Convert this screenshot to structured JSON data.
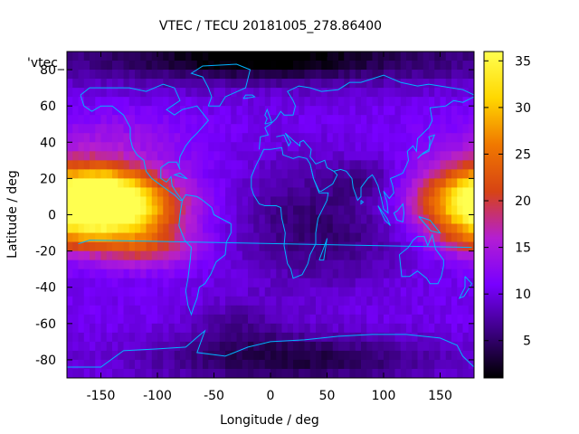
{
  "chart_data": {
    "type": "heatmap",
    "title": "VTEC / TECU 20181005_278.86400",
    "xlabel": "Longitude / deg",
    "ylabel": "Latitude / deg",
    "key_label": "'vtec_",
    "xlim": [
      -180,
      180
    ],
    "ylim": [
      -90,
      90
    ],
    "x_ticks": [
      -150,
      -100,
      -50,
      0,
      50,
      100,
      150
    ],
    "y_ticks": [
      -80,
      -60,
      -40,
      -20,
      0,
      20,
      40,
      60,
      80
    ],
    "colorbar": {
      "range": [
        1,
        36
      ],
      "ticks": [
        5,
        10,
        15,
        20,
        25,
        30,
        35
      ]
    },
    "background_vtec": 10.5,
    "features": [
      {
        "name": "pacific-equatorial-anomaly",
        "lon": -140,
        "lat": 4,
        "lon_halfwidth": 40,
        "lat_halfwidth": 13,
        "peak": 26
      },
      {
        "name": "pacific-southern-crest",
        "lon": -110,
        "lat": -18,
        "lon_halfwidth": 30,
        "lat_halfwidth": 8,
        "peak": 7
      },
      {
        "name": "pacific-northern-crest",
        "lon": -150,
        "lat": 14,
        "lon_halfwidth": 26,
        "lat_halfwidth": 8,
        "peak": 5
      },
      {
        "name": "western-pacific-anomaly",
        "lon": 178,
        "lat": 8,
        "lon_halfwidth": 38,
        "lat_halfwidth": 14,
        "peak": 15
      },
      {
        "name": "western-pacific-south",
        "lon": 175,
        "lat": -14,
        "lon_halfwidth": 20,
        "lat_halfwidth": 6,
        "peak": 4
      },
      {
        "name": "north-pacific-moderate",
        "lon": -140,
        "lat": 40,
        "lon_halfwidth": 50,
        "lat_halfwidth": 12,
        "peak": 3
      },
      {
        "name": "africa-depletion",
        "lon": 20,
        "lat": -5,
        "lon_halfwidth": 40,
        "lat_halfwidth": 25,
        "peak": -4
      },
      {
        "name": "indian-depletion",
        "lon": 80,
        "lat": -10,
        "lon_halfwidth": 40,
        "lat_halfwidth": 20,
        "peak": -3
      },
      {
        "name": "east-asia-dip",
        "lon": 85,
        "lat": 20,
        "lon_halfwidth": 25,
        "lat_halfwidth": 8,
        "peak": -3
      },
      {
        "name": "arctic-low",
        "lon": 0,
        "lat": 88,
        "lon_halfwidth": 180,
        "lat_halfwidth": 12,
        "peak": -7
      },
      {
        "name": "arctic-low-core",
        "lon": -10,
        "lat": 85,
        "lon_halfwidth": 60,
        "lat_halfwidth": 6,
        "peak": -4
      },
      {
        "name": "antarctic-low",
        "lon": 20,
        "lat": -80,
        "lon_halfwidth": 90,
        "lat_halfwidth": 10,
        "peak": -7
      },
      {
        "name": "south-atlantic-dip",
        "lon": -30,
        "lat": -60,
        "lon_halfwidth": 30,
        "lat_halfwidth": 10,
        "peak": -3
      }
    ]
  },
  "colors": {
    "coastline": "#00b4ff",
    "palette": [
      "#000000",
      "#3c0082",
      "#7800ff",
      "#b41ed2",
      "#d74414",
      "#f07800",
      "#ffd700",
      "#ffff50"
    ]
  }
}
